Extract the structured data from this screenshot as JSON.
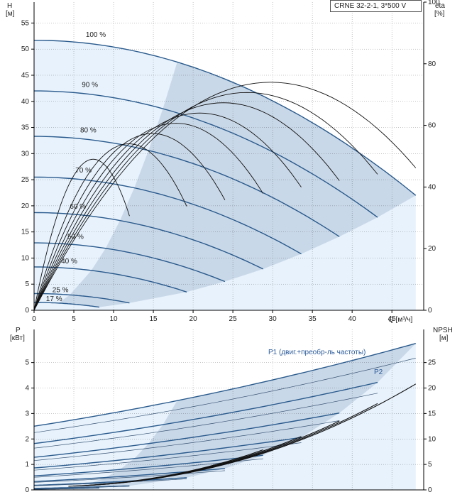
{
  "title": "CRNE 32-2-1, 3*500 V",
  "colors": {
    "area_light": "#e7f2fc",
    "area_mid": "#c9d8e8",
    "curve_blue": "#2a5a8c",
    "curve_black": "#111111",
    "grid": "#000000"
  },
  "chart_data": [
    {
      "type": "line",
      "name": "head",
      "xlabel": "Q [м³/ч]",
      "ylabel": "H\n[м]",
      "y2label": "eta\n[%]",
      "xlim": [
        0,
        49
      ],
      "ylim": [
        0,
        59
      ],
      "y2lim": [
        0,
        100
      ],
      "x_ticks": [
        0,
        5,
        10,
        15,
        20,
        25,
        30,
        35,
        40,
        45
      ],
      "y_ticks": [
        0,
        5,
        10,
        15,
        20,
        25,
        30,
        35,
        40,
        45,
        50,
        55
      ],
      "y2_ticks": [
        0,
        20,
        40,
        60,
        80,
        100
      ],
      "speed_labels": [
        "100 %",
        "90 %",
        "80 %",
        "70 %",
        "60 %",
        "50 %",
        "40 %",
        "25 %",
        "17 %"
      ],
      "head_curves": [
        {
          "speed": 100,
          "q_max": 48,
          "h0": 51.7,
          "h_end": 22.0
        },
        {
          "speed": 90,
          "q_max": 43.2,
          "h0": 42.0,
          "h_end": 17.8
        },
        {
          "speed": 80,
          "q_max": 38.4,
          "h0": 33.3,
          "h_end": 14.1
        },
        {
          "speed": 70,
          "q_max": 33.6,
          "h0": 25.5,
          "h_end": 10.8
        },
        {
          "speed": 60,
          "q_max": 28.8,
          "h0": 18.7,
          "h_end": 7.9
        },
        {
          "speed": 50,
          "q_max": 24.0,
          "h0": 12.9,
          "h_end": 5.5
        },
        {
          "speed": 40,
          "q_max": 19.2,
          "h0": 8.3,
          "h_end": 3.5
        },
        {
          "speed": 25,
          "q_max": 12.0,
          "h0": 3.2,
          "h_end": 1.4
        },
        {
          "speed": 17,
          "q_max": 8.2,
          "h0": 1.5,
          "h_end": 0.6
        }
      ],
      "eta_peak": 74
    },
    {
      "type": "line",
      "name": "power",
      "xlabel": "",
      "ylabel": "P\n[кВт]",
      "y2label": "NPSH\n[м]",
      "xlim": [
        0,
        49
      ],
      "ylim": [
        0,
        6.3
      ],
      "y2lim": [
        0,
        31.5
      ],
      "y_ticks": [
        0,
        1,
        2,
        3,
        4,
        5
      ],
      "y2_ticks": [
        0,
        5,
        10,
        15,
        20,
        25
      ],
      "series_labels": [
        "P1 (двиг.+преобр-ль частоты)",
        "P2"
      ],
      "p1_curves": [
        {
          "speed": 100,
          "q_max": 48,
          "p0": 2.5,
          "p_end": 5.75
        },
        {
          "speed": 90,
          "q_max": 43.2,
          "p0": 1.82,
          "p_end": 4.22
        },
        {
          "speed": 80,
          "q_max": 38.4,
          "p0": 1.28,
          "p_end": 3.02
        },
        {
          "speed": 70,
          "q_max": 33.6,
          "p0": 0.86,
          "p_end": 2.06
        },
        {
          "speed": 60,
          "q_max": 28.8,
          "p0": 0.55,
          "p_end": 1.36
        },
        {
          "speed": 50,
          "q_max": 24.0,
          "p0": 0.33,
          "p_end": 0.84
        },
        {
          "speed": 40,
          "q_max": 19.2,
          "p0": 0.18,
          "p_end": 0.48
        },
        {
          "speed": 25,
          "q_max": 12.0,
          "p0": 0.06,
          "p_end": 0.16
        },
        {
          "speed": 17,
          "q_max": 8.2,
          "p0": 0.03,
          "p_end": 0.08
        }
      ],
      "npsh_end": 20.2
    }
  ]
}
